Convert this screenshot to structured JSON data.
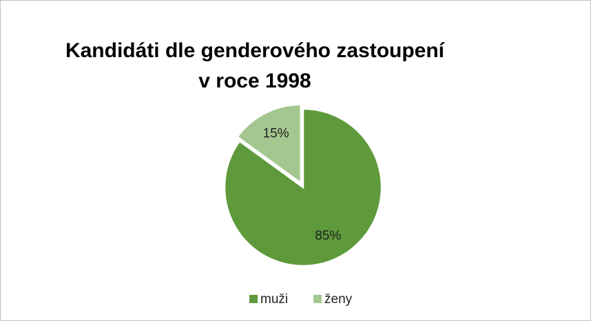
{
  "chart_data": {
    "type": "pie",
    "title": "Kandidáti dle genderového zastoupení v roce 1998",
    "categories": [
      "muži",
      "ženy"
    ],
    "values": [
      85,
      15
    ],
    "value_labels": [
      "85%",
      "15%"
    ],
    "colors": [
      "#5e9a3b",
      "#a4c78f"
    ],
    "legend": "bottom"
  }
}
